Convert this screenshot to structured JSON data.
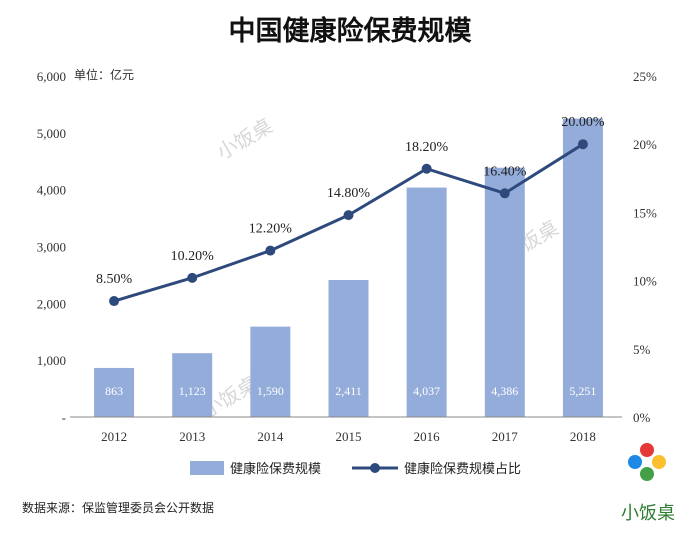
{
  "chart_data": {
    "type": "bar",
    "title": "中国健康险保费规模",
    "unit_label": "单位：亿元",
    "categories": [
      "2012",
      "2013",
      "2014",
      "2015",
      "2016",
      "2017",
      "2018"
    ],
    "series": [
      {
        "name": "健康险保费规模",
        "type": "bar",
        "axis": "left",
        "values": [
          863,
          1123,
          1590,
          2411,
          4037,
          4386,
          5251
        ],
        "labels": [
          "863",
          "1,123",
          "1,590",
          "2,411",
          "4,037",
          "4,386",
          "5,251"
        ]
      },
      {
        "name": "健康险保费规模占比",
        "type": "line",
        "axis": "right",
        "values": [
          8.5,
          10.2,
          12.2,
          14.8,
          18.2,
          16.4,
          20.0
        ],
        "labels": [
          "8.50%",
          "10.20%",
          "12.20%",
          "14.80%",
          "18.20%",
          "16.40%",
          "20.00%"
        ]
      }
    ],
    "y_left": {
      "ylim": [
        0,
        6000
      ],
      "ticks": [
        "-",
        "1,000",
        "2,000",
        "3,000",
        "4,000",
        "5,000",
        "6,000"
      ]
    },
    "y_right": {
      "ylim": [
        0,
        25
      ],
      "ticks": [
        "0%",
        "5%",
        "10%",
        "15%",
        "20%",
        "25%"
      ]
    },
    "grid": false,
    "legend": "bottom",
    "colors": {
      "bar": "#93acd9",
      "line": "#2e4a7c"
    }
  },
  "source": "数据来源：保监管理委员会公开数据",
  "watermark": "小饭桌",
  "logo_text": "小饭桌"
}
